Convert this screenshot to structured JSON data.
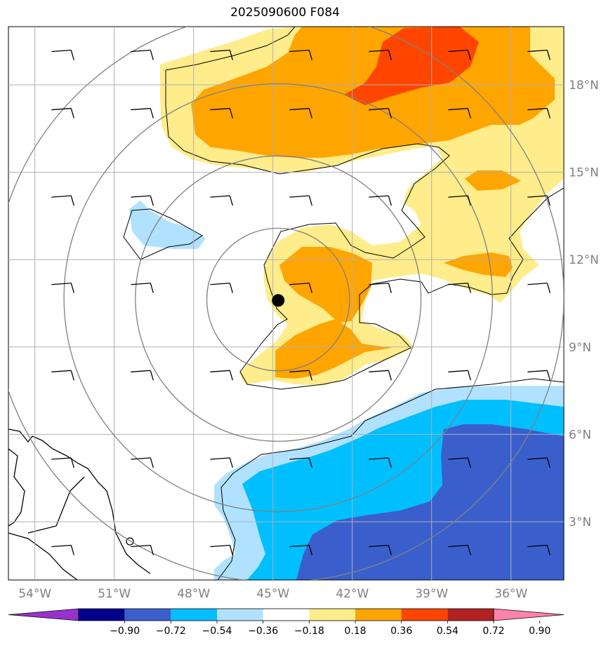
{
  "title": "2025090600 F084",
  "map": {
    "lon_range": [
      -55,
      -34
    ],
    "lat_range": [
      1,
      20
    ],
    "lon_ticks": [
      {
        "value": -54,
        "label": "54°W"
      },
      {
        "value": -51,
        "label": "51°W"
      },
      {
        "value": -48,
        "label": "48°W"
      },
      {
        "value": -45,
        "label": "45°W"
      },
      {
        "value": -42,
        "label": "42°W"
      },
      {
        "value": -39,
        "label": "39°W"
      },
      {
        "value": -36,
        "label": "36°W"
      }
    ],
    "lat_ticks": [
      {
        "value": 18,
        "label": "18°N"
      },
      {
        "value": 15,
        "label": "15°N"
      },
      {
        "value": 12,
        "label": "12°N"
      },
      {
        "value": 9,
        "label": "9°N"
      },
      {
        "value": 6,
        "label": "6°N"
      },
      {
        "value": 3,
        "label": "3°N"
      }
    ],
    "storm_center": {
      "lon": -44.8,
      "lat": 10.6
    },
    "range_ring_radii_deg": [
      2.5,
      5,
      7.5,
      10
    ],
    "grid_color": "#b0b0b0",
    "ring_color": "#808080"
  },
  "colorbar": {
    "ticks": [
      "−0.90",
      "−0.72",
      "−0.54",
      "−0.36",
      "−0.18",
      "0.18",
      "0.36",
      "0.54",
      "0.72",
      "0.90"
    ],
    "colors": [
      "#9932cc",
      "#00008b",
      "#3a5fcd",
      "#00bfff",
      "#b0e2ff",
      "#ffffff",
      "#ffec8b",
      "#ffa500",
      "#ff4500",
      "#b22222",
      "#ff82ab"
    ]
  },
  "fill_colors": {
    "c018": "#ffec8b",
    "c036": "#ffa500",
    "c054": "#ff4500",
    "n018": "#b0e2ff",
    "n036": "#00bfff",
    "n054": "#3a5fcd"
  }
}
